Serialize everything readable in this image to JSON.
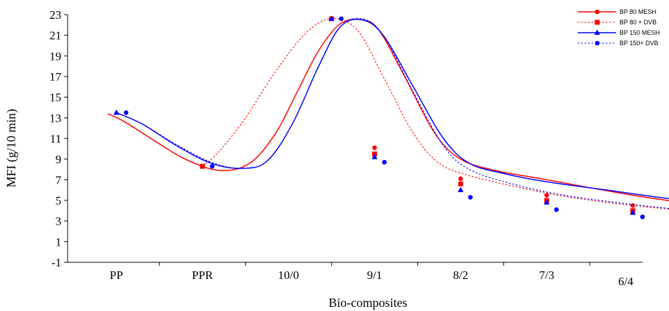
{
  "chart_data": {
    "type": "line",
    "xlabel": "Bio-composites",
    "ylabel": "MFI (g/10 min)",
    "categories": [
      "PP",
      "PPR",
      "10/0",
      "9/1",
      "8/2",
      "7/3",
      "6/4"
    ],
    "y_ticks": [
      "-1",
      "1",
      "3",
      "5",
      "7",
      "9",
      "11",
      "13",
      "15",
      "17",
      "19",
      "21",
      "23"
    ],
    "ylim": [
      -1,
      23
    ],
    "grid": false,
    "legend_position": "top-right",
    "series": [
      {
        "name": "BP 80 MESH",
        "color": "#ff0000",
        "line_style": "solid",
        "marker": "circle",
        "points": [
          {
            "x": 3,
            "y": 10.1
          },
          {
            "x": 4,
            "y": 7.1
          },
          {
            "x": 5,
            "y": 5.5
          },
          {
            "x": 6,
            "y": 4.5
          }
        ],
        "curve": [
          [
            -0.1,
            13.4
          ],
          [
            0.1,
            12.6
          ],
          [
            0.4,
            11.0
          ],
          [
            0.8,
            9.0
          ],
          [
            1.2,
            7.9
          ],
          [
            1.55,
            8.6
          ],
          [
            1.85,
            11.5
          ],
          [
            2.1,
            15.5
          ],
          [
            2.35,
            19.5
          ],
          [
            2.6,
            22.1
          ],
          [
            2.85,
            22.5
          ],
          [
            3.05,
            21.5
          ],
          [
            3.35,
            17.0
          ],
          [
            3.7,
            11.5
          ],
          [
            4.0,
            9.0
          ],
          [
            4.4,
            7.9
          ],
          [
            5.0,
            7.0
          ],
          [
            6.0,
            5.5
          ],
          [
            7.0,
            4.3
          ]
        ]
      },
      {
        "name": "BP 80 + DVB",
        "color": "#ff0000",
        "line_style": "dotted",
        "marker": "square",
        "points": [
          {
            "x": 1,
            "y": 8.3
          },
          {
            "x": 2.5,
            "y": 22.6
          },
          {
            "x": 3,
            "y": 9.5
          },
          {
            "x": 4,
            "y": 6.6
          },
          {
            "x": 5,
            "y": 5.0
          },
          {
            "x": 6,
            "y": 4.0
          }
        ],
        "curve": [
          [
            1.0,
            8.3
          ],
          [
            1.2,
            9.8
          ],
          [
            1.5,
            13.0
          ],
          [
            1.85,
            17.5
          ],
          [
            2.2,
            21.2
          ],
          [
            2.5,
            22.6
          ],
          [
            2.8,
            21.5
          ],
          [
            3.1,
            17.0
          ],
          [
            3.45,
            11.5
          ],
          [
            3.75,
            8.6
          ],
          [
            4.1,
            7.4
          ],
          [
            4.6,
            6.4
          ],
          [
            5.2,
            5.4
          ],
          [
            6.0,
            4.5
          ],
          [
            6.8,
            3.9
          ],
          [
            7.55,
            3.4
          ]
        ]
      },
      {
        "name": "BP 150 MESH",
        "color": "#0000ff",
        "line_style": "solid",
        "marker": "triangle",
        "points": [
          {
            "x": 0,
            "y": 13.5
          },
          {
            "x": 2.5,
            "y": 22.6
          },
          {
            "x": 3,
            "y": 9.2
          },
          {
            "x": 4,
            "y": 6.0
          },
          {
            "x": 5,
            "y": 4.8
          },
          {
            "x": 6,
            "y": 3.8
          }
        ],
        "curve": [
          [
            0.0,
            13.5
          ],
          [
            0.3,
            12.4
          ],
          [
            0.7,
            10.3
          ],
          [
            1.1,
            8.6
          ],
          [
            1.45,
            8.1
          ],
          [
            1.75,
            8.8
          ],
          [
            2.05,
            12.5
          ],
          [
            2.35,
            18.0
          ],
          [
            2.6,
            21.8
          ],
          [
            2.85,
            22.5
          ],
          [
            3.1,
            21.0
          ],
          [
            3.45,
            16.0
          ],
          [
            3.8,
            11.0
          ],
          [
            4.1,
            8.6
          ],
          [
            4.5,
            7.6
          ],
          [
            5.0,
            6.8
          ],
          [
            5.7,
            6.0
          ],
          [
            6.3,
            5.3
          ],
          [
            7.0,
            4.6
          ],
          [
            7.8,
            3.8
          ]
        ]
      },
      {
        "name": "BP 150+ DVB",
        "color": "#0000ff",
        "line_style": "dotted",
        "marker": "circle",
        "points": [
          {
            "x": 0,
            "y": 13.5
          },
          {
            "x": 1,
            "y": 8.3
          },
          {
            "x": 2.5,
            "y": 22.6
          },
          {
            "x": 3,
            "y": 8.7
          },
          {
            "x": 4,
            "y": 5.3
          },
          {
            "x": 5,
            "y": 4.1
          },
          {
            "x": 6,
            "y": 3.4
          }
        ],
        "curve": [
          [
            0.0,
            13.5
          ],
          [
            0.3,
            12.4
          ],
          [
            0.7,
            10.4
          ],
          [
            1.1,
            8.7
          ],
          [
            1.45,
            8.1
          ],
          [
            1.75,
            8.8
          ],
          [
            2.05,
            12.5
          ],
          [
            2.35,
            18.0
          ],
          [
            2.6,
            21.8
          ],
          [
            2.85,
            22.6
          ],
          [
            3.1,
            21.0
          ],
          [
            3.45,
            15.5
          ],
          [
            3.8,
            10.3
          ],
          [
            4.1,
            8.0
          ],
          [
            4.6,
            6.6
          ],
          [
            5.2,
            5.5
          ],
          [
            6.0,
            4.6
          ],
          [
            6.8,
            3.9
          ],
          [
            7.65,
            3.2
          ]
        ]
      }
    ]
  }
}
